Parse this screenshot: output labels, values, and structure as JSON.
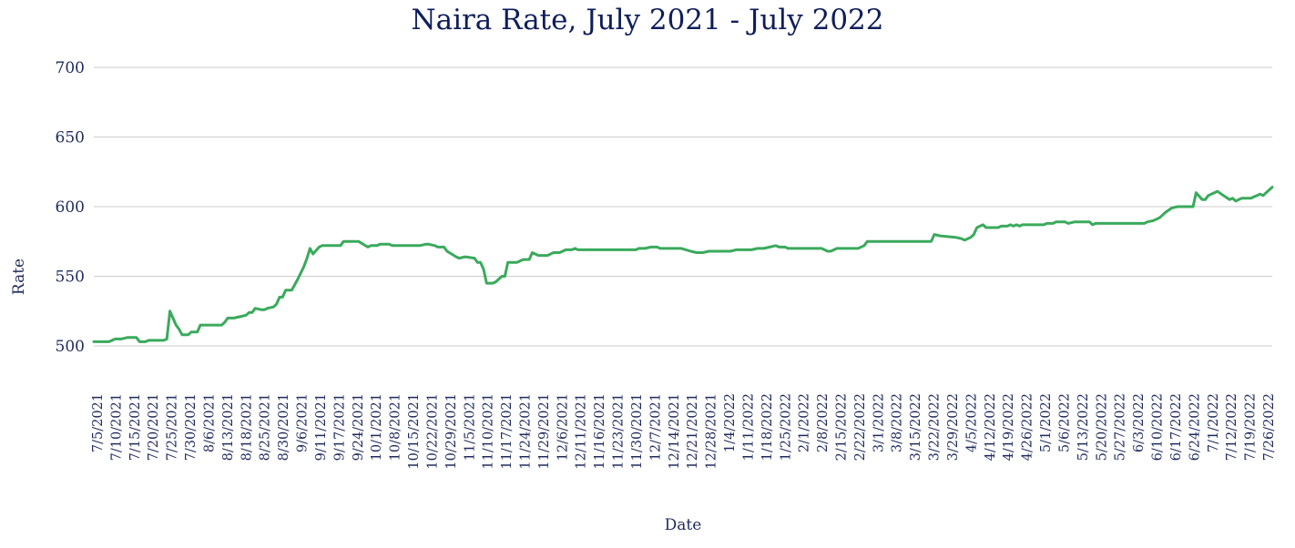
{
  "chart_data": {
    "type": "line",
    "title": "Naira Rate, July 2021 - July 2022",
    "xlabel": "Date",
    "ylabel": "Rate",
    "ylim": [
      500,
      700
    ],
    "yticks": [
      500,
      550,
      600,
      650,
      700
    ],
    "grid": true,
    "legend": "none",
    "line_color": "#3aaa5c",
    "x_tick_labels": [
      "7/5/2021",
      "7/10/2021",
      "7/15/2021",
      "7/20/2021",
      "7/25/2021",
      "7/30/2021",
      "8/6/2021",
      "8/13/2021",
      "8/18/2021",
      "8/25/2021",
      "8/30/2021",
      "9/6/2021",
      "9/11/2021",
      "9/17/2021",
      "9/24/2021",
      "10/1/2021",
      "10/8/2021",
      "10/15/2021",
      "10/22/2021",
      "10/29/2021",
      "11/5/2021",
      "11/10/2021",
      "11/17/2021",
      "11/24/2021",
      "11/29/2021",
      "12/6/2021",
      "12/11/2021",
      "11/16/2021",
      "11/23/2021",
      "11/30/2021",
      "12/7/2021",
      "12/14/2021",
      "12/21/2021",
      "12/28/2021",
      "1/4/2022",
      "1/11/2022",
      "1/18/2022",
      "1/25/2022",
      "2/1/2022",
      "2/8/2022",
      "2/15/2022",
      "2/22/2022",
      "3/1/2022",
      "3/8/2022",
      "3/15/2022",
      "3/22/2022",
      "3/29/2022",
      "4/5/2022",
      "4/12/2022",
      "4/19/2022",
      "4/26/2022",
      "5/1/2022",
      "5/6/2022",
      "5/13/2022",
      "5/20/2022",
      "5/27/2022",
      "6/3/2022",
      "6/10/2022",
      "6/17/2022",
      "6/24/2022",
      "7/1/2022",
      "7/12/2022",
      "7/19/2022",
      "7/26/2022"
    ],
    "series": [
      {
        "points": [
          [
            "7/5/2021",
            503
          ],
          [
            "7/9/2021",
            503
          ],
          [
            "7/10/2021",
            503
          ],
          [
            "7/12/2021",
            505
          ],
          [
            "7/14/2021",
            505
          ],
          [
            "7/16/2021",
            506
          ],
          [
            "7/19/2021",
            506
          ],
          [
            "7/20/2021",
            503
          ],
          [
            "7/22/2021",
            503
          ],
          [
            "7/23/2021",
            504
          ],
          [
            "7/28/2021",
            504
          ],
          [
            "7/29/2021",
            505
          ],
          [
            "7/30/2021",
            525
          ],
          [
            "7/31/2021",
            520
          ],
          [
            "8/1/2021",
            515
          ],
          [
            "8/2/2021",
            512
          ],
          [
            "8/3/2021",
            508
          ],
          [
            "8/5/2021",
            508
          ],
          [
            "8/6/2021",
            510
          ],
          [
            "8/8/2021",
            510
          ],
          [
            "8/9/2021",
            515
          ],
          [
            "8/16/2021",
            515
          ],
          [
            "8/17/2021",
            517
          ],
          [
            "8/18/2021",
            520
          ],
          [
            "8/20/2021",
            520
          ],
          [
            "8/22/2021",
            521
          ],
          [
            "8/24/2021",
            522
          ],
          [
            "8/25/2021",
            524
          ],
          [
            "8/26/2021",
            524
          ],
          [
            "8/27/2021",
            527
          ],
          [
            "8/29/2021",
            526
          ],
          [
            "8/30/2021",
            526
          ],
          [
            "8/31/2021",
            527
          ],
          [
            "9/2/2021",
            528
          ],
          [
            "9/3/2021",
            530
          ],
          [
            "9/4/2021",
            535
          ],
          [
            "9/5/2021",
            535
          ],
          [
            "9/6/2021",
            540
          ],
          [
            "9/8/2021",
            540
          ],
          [
            "9/10/2021",
            548
          ],
          [
            "9/12/2021",
            557
          ],
          [
            "9/13/2021",
            563
          ],
          [
            "9/14/2021",
            570
          ],
          [
            "9/15/2021",
            566
          ],
          [
            "9/17/2021",
            571
          ],
          [
            "9/18/2021",
            572
          ],
          [
            "9/22/2021",
            572
          ],
          [
            "9/24/2021",
            572
          ],
          [
            "9/25/2021",
            575
          ],
          [
            "9/30/2021",
            575
          ],
          [
            "10/3/2021",
            571
          ],
          [
            "10/4/2021",
            572
          ],
          [
            "10/6/2021",
            572
          ],
          [
            "10/7/2021",
            573
          ],
          [
            "10/10/2021",
            573
          ],
          [
            "10/11/2021",
            572
          ],
          [
            "10/20/2021",
            572
          ],
          [
            "10/22/2021",
            573
          ],
          [
            "10/23/2021",
            573
          ],
          [
            "10/25/2021",
            572
          ],
          [
            "10/26/2021",
            571
          ],
          [
            "10/28/2021",
            571
          ],
          [
            "10/29/2021",
            568
          ],
          [
            "11/1/2021",
            564
          ],
          [
            "11/2/2021",
            563
          ],
          [
            "11/4/2021",
            564
          ],
          [
            "11/7/2021",
            563
          ],
          [
            "11/8/2021",
            560
          ],
          [
            "11/9/2021",
            560
          ],
          [
            "11/10/2021",
            555
          ],
          [
            "11/11/2021",
            545
          ],
          [
            "11/13/2021",
            545
          ],
          [
            "11/14/2021",
            546
          ],
          [
            "11/16/2021",
            550
          ],
          [
            "11/17/2021",
            550
          ],
          [
            "11/18/2021",
            560
          ],
          [
            "11/21/2021",
            560
          ],
          [
            "11/23/2021",
            562
          ],
          [
            "11/25/2021",
            562
          ],
          [
            "11/26/2021",
            567
          ],
          [
            "11/28/2021",
            565
          ],
          [
            "12/1/2021",
            565
          ],
          [
            "12/3/2021",
            567
          ],
          [
            "12/5/2021",
            567
          ],
          [
            "12/7/2021",
            569
          ],
          [
            "12/9/2021",
            569
          ],
          [
            "12/10/2021",
            570
          ],
          [
            "12/11/2021",
            569
          ],
          [
            "12/30/2021",
            569
          ],
          [
            "12/31/2021",
            570
          ],
          [
            "1/2/2022",
            570
          ],
          [
            "1/4/2022",
            571
          ],
          [
            "1/6/2022",
            571
          ],
          [
            "1/7/2022",
            570
          ],
          [
            "1/14/2022",
            570
          ],
          [
            "1/17/2022",
            568
          ],
          [
            "1/19/2022",
            567
          ],
          [
            "1/21/2022",
            567
          ],
          [
            "1/23/2022",
            568
          ],
          [
            "1/30/2022",
            568
          ],
          [
            "2/1/2022",
            569
          ],
          [
            "2/6/2022",
            569
          ],
          [
            "2/8/2022",
            570
          ],
          [
            "2/10/2022",
            570
          ],
          [
            "2/12/2022",
            571
          ],
          [
            "2/14/2022",
            572
          ],
          [
            "2/15/2022",
            571
          ],
          [
            "2/17/2022",
            571
          ],
          [
            "2/18/2022",
            570
          ],
          [
            "3/1/2022",
            570
          ],
          [
            "3/3/2022",
            568
          ],
          [
            "3/4/2022",
            568
          ],
          [
            "3/6/2022",
            570
          ],
          [
            "3/13/2022",
            570
          ],
          [
            "3/15/2022",
            572
          ],
          [
            "3/16/2022",
            575
          ],
          [
            "3/20/2022",
            575
          ],
          [
            "4/6/2022",
            575
          ],
          [
            "4/7/2022",
            580
          ],
          [
            "4/9/2022",
            579
          ],
          [
            "4/14/2022",
            578
          ],
          [
            "4/16/2022",
            577
          ],
          [
            "4/17/2022",
            576
          ],
          [
            "4/19/2022",
            578
          ],
          [
            "4/20/2022",
            580
          ],
          [
            "4/21/2022",
            585
          ],
          [
            "4/23/2022",
            587
          ],
          [
            "4/24/2022",
            585
          ],
          [
            "4/28/2022",
            585
          ],
          [
            "4/29/2022",
            586
          ],
          [
            "5/1/2022",
            586
          ],
          [
            "5/2/2022",
            587
          ],
          [
            "5/3/2022",
            586
          ],
          [
            "5/4/2022",
            587
          ],
          [
            "5/5/2022",
            586
          ],
          [
            "5/6/2022",
            587
          ],
          [
            "5/13/2022",
            587
          ],
          [
            "5/14/2022",
            588
          ],
          [
            "5/16/2022",
            588
          ],
          [
            "5/17/2022",
            589
          ],
          [
            "5/20/2022",
            589
          ],
          [
            "5/21/2022",
            588
          ],
          [
            "5/23/2022",
            589
          ],
          [
            "5/28/2022",
            589
          ],
          [
            "5/29/2022",
            587
          ],
          [
            "5/30/2022",
            588
          ],
          [
            "6/4/2022",
            588
          ],
          [
            "6/15/2022",
            588
          ],
          [
            "6/16/2022",
            589
          ],
          [
            "6/18/2022",
            590
          ],
          [
            "6/20/2022",
            592
          ],
          [
            "6/21/2022",
            594
          ],
          [
            "6/22/2022",
            596
          ],
          [
            "6/24/2022",
            599
          ],
          [
            "6/26/2022",
            600
          ],
          [
            "6/30/2022",
            600
          ],
          [
            "7/1/2022",
            600
          ],
          [
            "7/2/2022",
            610
          ],
          [
            "7/4/2022",
            605
          ],
          [
            "7/5/2022",
            605
          ],
          [
            "7/6/2022",
            608
          ],
          [
            "7/7/2022",
            609
          ],
          [
            "7/9/2022",
            611
          ],
          [
            "7/11/2022",
            608
          ],
          [
            "7/13/2022",
            605
          ],
          [
            "7/14/2022",
            606
          ],
          [
            "7/15/2022",
            604
          ],
          [
            "7/16/2022",
            605
          ],
          [
            "7/17/2022",
            606
          ],
          [
            "7/20/2022",
            606
          ],
          [
            "7/21/2022",
            607
          ],
          [
            "7/22/2022",
            608
          ],
          [
            "7/23/2022",
            609
          ],
          [
            "7/24/2022",
            608
          ],
          [
            "7/25/2022",
            610
          ],
          [
            "7/26/2022",
            612
          ],
          [
            "7/27/2022",
            614
          ]
        ]
      }
    ]
  }
}
